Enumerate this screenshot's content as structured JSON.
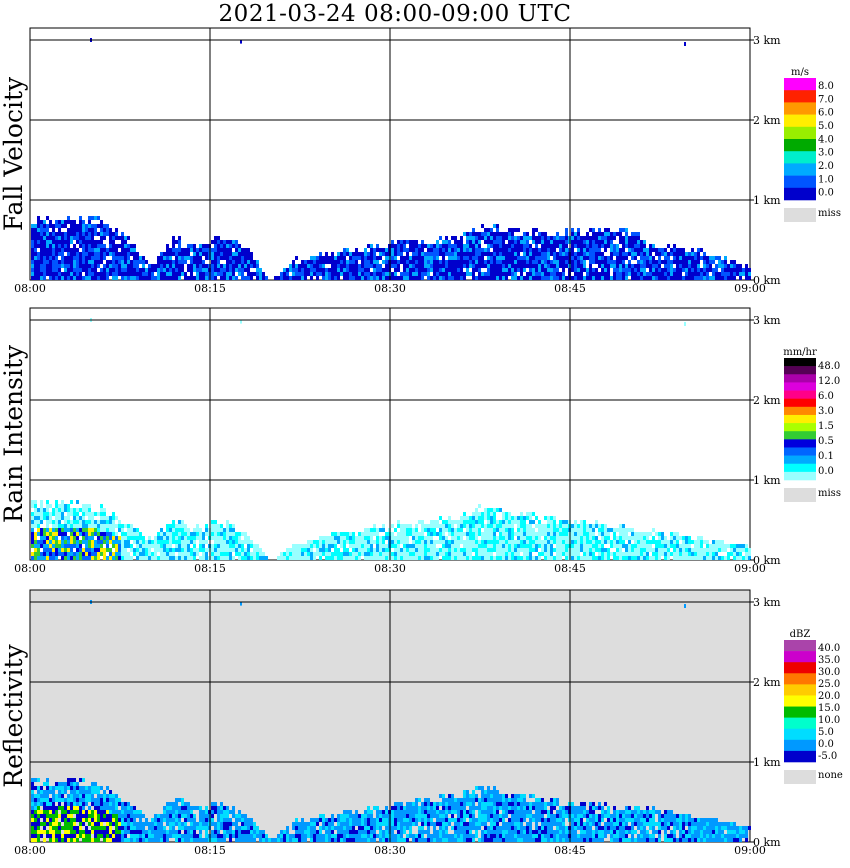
{
  "title": "2021-03-24   08:00-09:00 UTC",
  "chart_data": [
    {
      "type": "heatmap",
      "panel_title": "Fall Velocity",
      "x_ticks": [
        "08:00",
        "08:15",
        "08:30",
        "08:45",
        "09:00"
      ],
      "y_ticks": [
        "0 km",
        "1 km",
        "2 km",
        "3 km"
      ],
      "ylim_km": [
        0,
        3.2
      ],
      "grid": true,
      "background": "#ffffff",
      "legend": {
        "placement": "right",
        "unit": "m/s",
        "labels": [
          "8.0",
          "7.0",
          "6.0",
          "5.0",
          "4.0",
          "3.0",
          "2.0",
          "1.0",
          "0.0"
        ],
        "colors": [
          "#ff00ff",
          "#ff2200",
          "#ff9900",
          "#ffee00",
          "#99ee00",
          "#00aa00",
          "#00eecc",
          "#00aaff",
          "#0055ff",
          "#0000cc"
        ],
        "miss_label": "miss",
        "miss_color": "#dddddd"
      },
      "echo_profile": {
        "time_minutes": [
          0,
          3,
          6,
          8,
          10,
          12,
          14,
          16,
          18,
          20,
          22,
          24,
          26,
          28,
          30,
          32,
          34,
          36,
          38,
          40,
          42,
          44,
          46,
          48,
          50,
          52,
          54,
          56,
          58,
          60
        ],
        "top_km": [
          0.8,
          0.85,
          0.8,
          0.6,
          0.2,
          0.6,
          0.45,
          0.6,
          0.45,
          0.0,
          0.3,
          0.35,
          0.4,
          0.45,
          0.5,
          0.5,
          0.55,
          0.6,
          0.75,
          0.65,
          0.65,
          0.65,
          0.65,
          0.7,
          0.65,
          0.5,
          0.45,
          0.4,
          0.3,
          0.2
        ]
      },
      "dominant_colors": [
        "#0000cc",
        "#0055ff",
        "#00aaff"
      ]
    },
    {
      "type": "heatmap",
      "panel_title": "Rain Intensity",
      "x_ticks": [
        "08:00",
        "08:15",
        "08:30",
        "08:45",
        "09:00"
      ],
      "y_ticks": [
        "0 km",
        "1 km",
        "2 km",
        "3 km"
      ],
      "ylim_km": [
        0,
        3.2
      ],
      "grid": true,
      "background": "#ffffff",
      "legend": {
        "placement": "right",
        "unit": "mm/hr",
        "labels": [
          "48.0",
          "12.0",
          "6.0",
          "3.0",
          "1.5",
          "0.5",
          "0.1",
          "0.0"
        ],
        "colors": [
          "#000000",
          "#550055",
          "#aa00aa",
          "#dd00dd",
          "#ff0088",
          "#ff0000",
          "#ff8800",
          "#ffee00",
          "#aaff00",
          "#33cc33",
          "#0000dd",
          "#0066ff",
          "#00aaff",
          "#00ffff",
          "#99ffff"
        ],
        "miss_label": "miss",
        "miss_color": "#dddddd"
      },
      "echo_profile": {
        "time_minutes": [
          0,
          3,
          6,
          8,
          10,
          12,
          14,
          16,
          18,
          20,
          22,
          24,
          26,
          28,
          30,
          32,
          34,
          36,
          38,
          40,
          42,
          44,
          46,
          48,
          50,
          52,
          54,
          56,
          58,
          60
        ],
        "top_km": [
          0.75,
          0.8,
          0.7,
          0.5,
          0.3,
          0.55,
          0.45,
          0.55,
          0.35,
          0.0,
          0.25,
          0.3,
          0.4,
          0.45,
          0.5,
          0.5,
          0.55,
          0.6,
          0.75,
          0.6,
          0.6,
          0.55,
          0.5,
          0.5,
          0.45,
          0.4,
          0.35,
          0.3,
          0.25,
          0.2
        ]
      },
      "dominant_colors": [
        "#99ffff",
        "#00ffff",
        "#00aaff",
        "#0066ff",
        "#0000dd",
        "#33cc33",
        "#ffee00"
      ]
    },
    {
      "type": "heatmap",
      "panel_title": "Reflectivity",
      "x_ticks": [
        "08:00",
        "08:15",
        "08:30",
        "08:45",
        "09:00"
      ],
      "y_ticks": [
        "0 km",
        "1 km",
        "2 km",
        "3 km"
      ],
      "ylim_km": [
        0,
        3.2
      ],
      "grid": true,
      "background": "#dddddd",
      "legend": {
        "placement": "right",
        "unit": "dBZ",
        "labels": [
          "40.0",
          "35.0",
          "30.0",
          "25.0",
          "20.0",
          "15.0",
          "10.0",
          "5.0",
          "0.0",
          "-5.0"
        ],
        "colors": [
          "#aa44aa",
          "#cc00cc",
          "#ee0000",
          "#ff7700",
          "#ffcc00",
          "#ffff00",
          "#00bb00",
          "#00ffcc",
          "#00ddff",
          "#0099ff",
          "#0000cc"
        ],
        "miss_label": "none",
        "miss_color": "#dddddd"
      },
      "echo_profile": {
        "time_minutes": [
          0,
          3,
          6,
          8,
          10,
          12,
          14,
          16,
          18,
          20,
          22,
          24,
          26,
          28,
          30,
          32,
          34,
          36,
          38,
          40,
          42,
          44,
          46,
          48,
          50,
          52,
          54,
          56,
          58,
          60
        ],
        "top_km": [
          0.8,
          0.85,
          0.75,
          0.55,
          0.3,
          0.6,
          0.45,
          0.55,
          0.35,
          0.05,
          0.3,
          0.35,
          0.4,
          0.45,
          0.5,
          0.55,
          0.6,
          0.65,
          0.75,
          0.65,
          0.6,
          0.55,
          0.5,
          0.5,
          0.45,
          0.45,
          0.4,
          0.35,
          0.3,
          0.2
        ]
      },
      "dominant_colors": [
        "#0099ff",
        "#00ddff",
        "#0000cc",
        "#00bb00",
        "#ffff00"
      ]
    }
  ]
}
